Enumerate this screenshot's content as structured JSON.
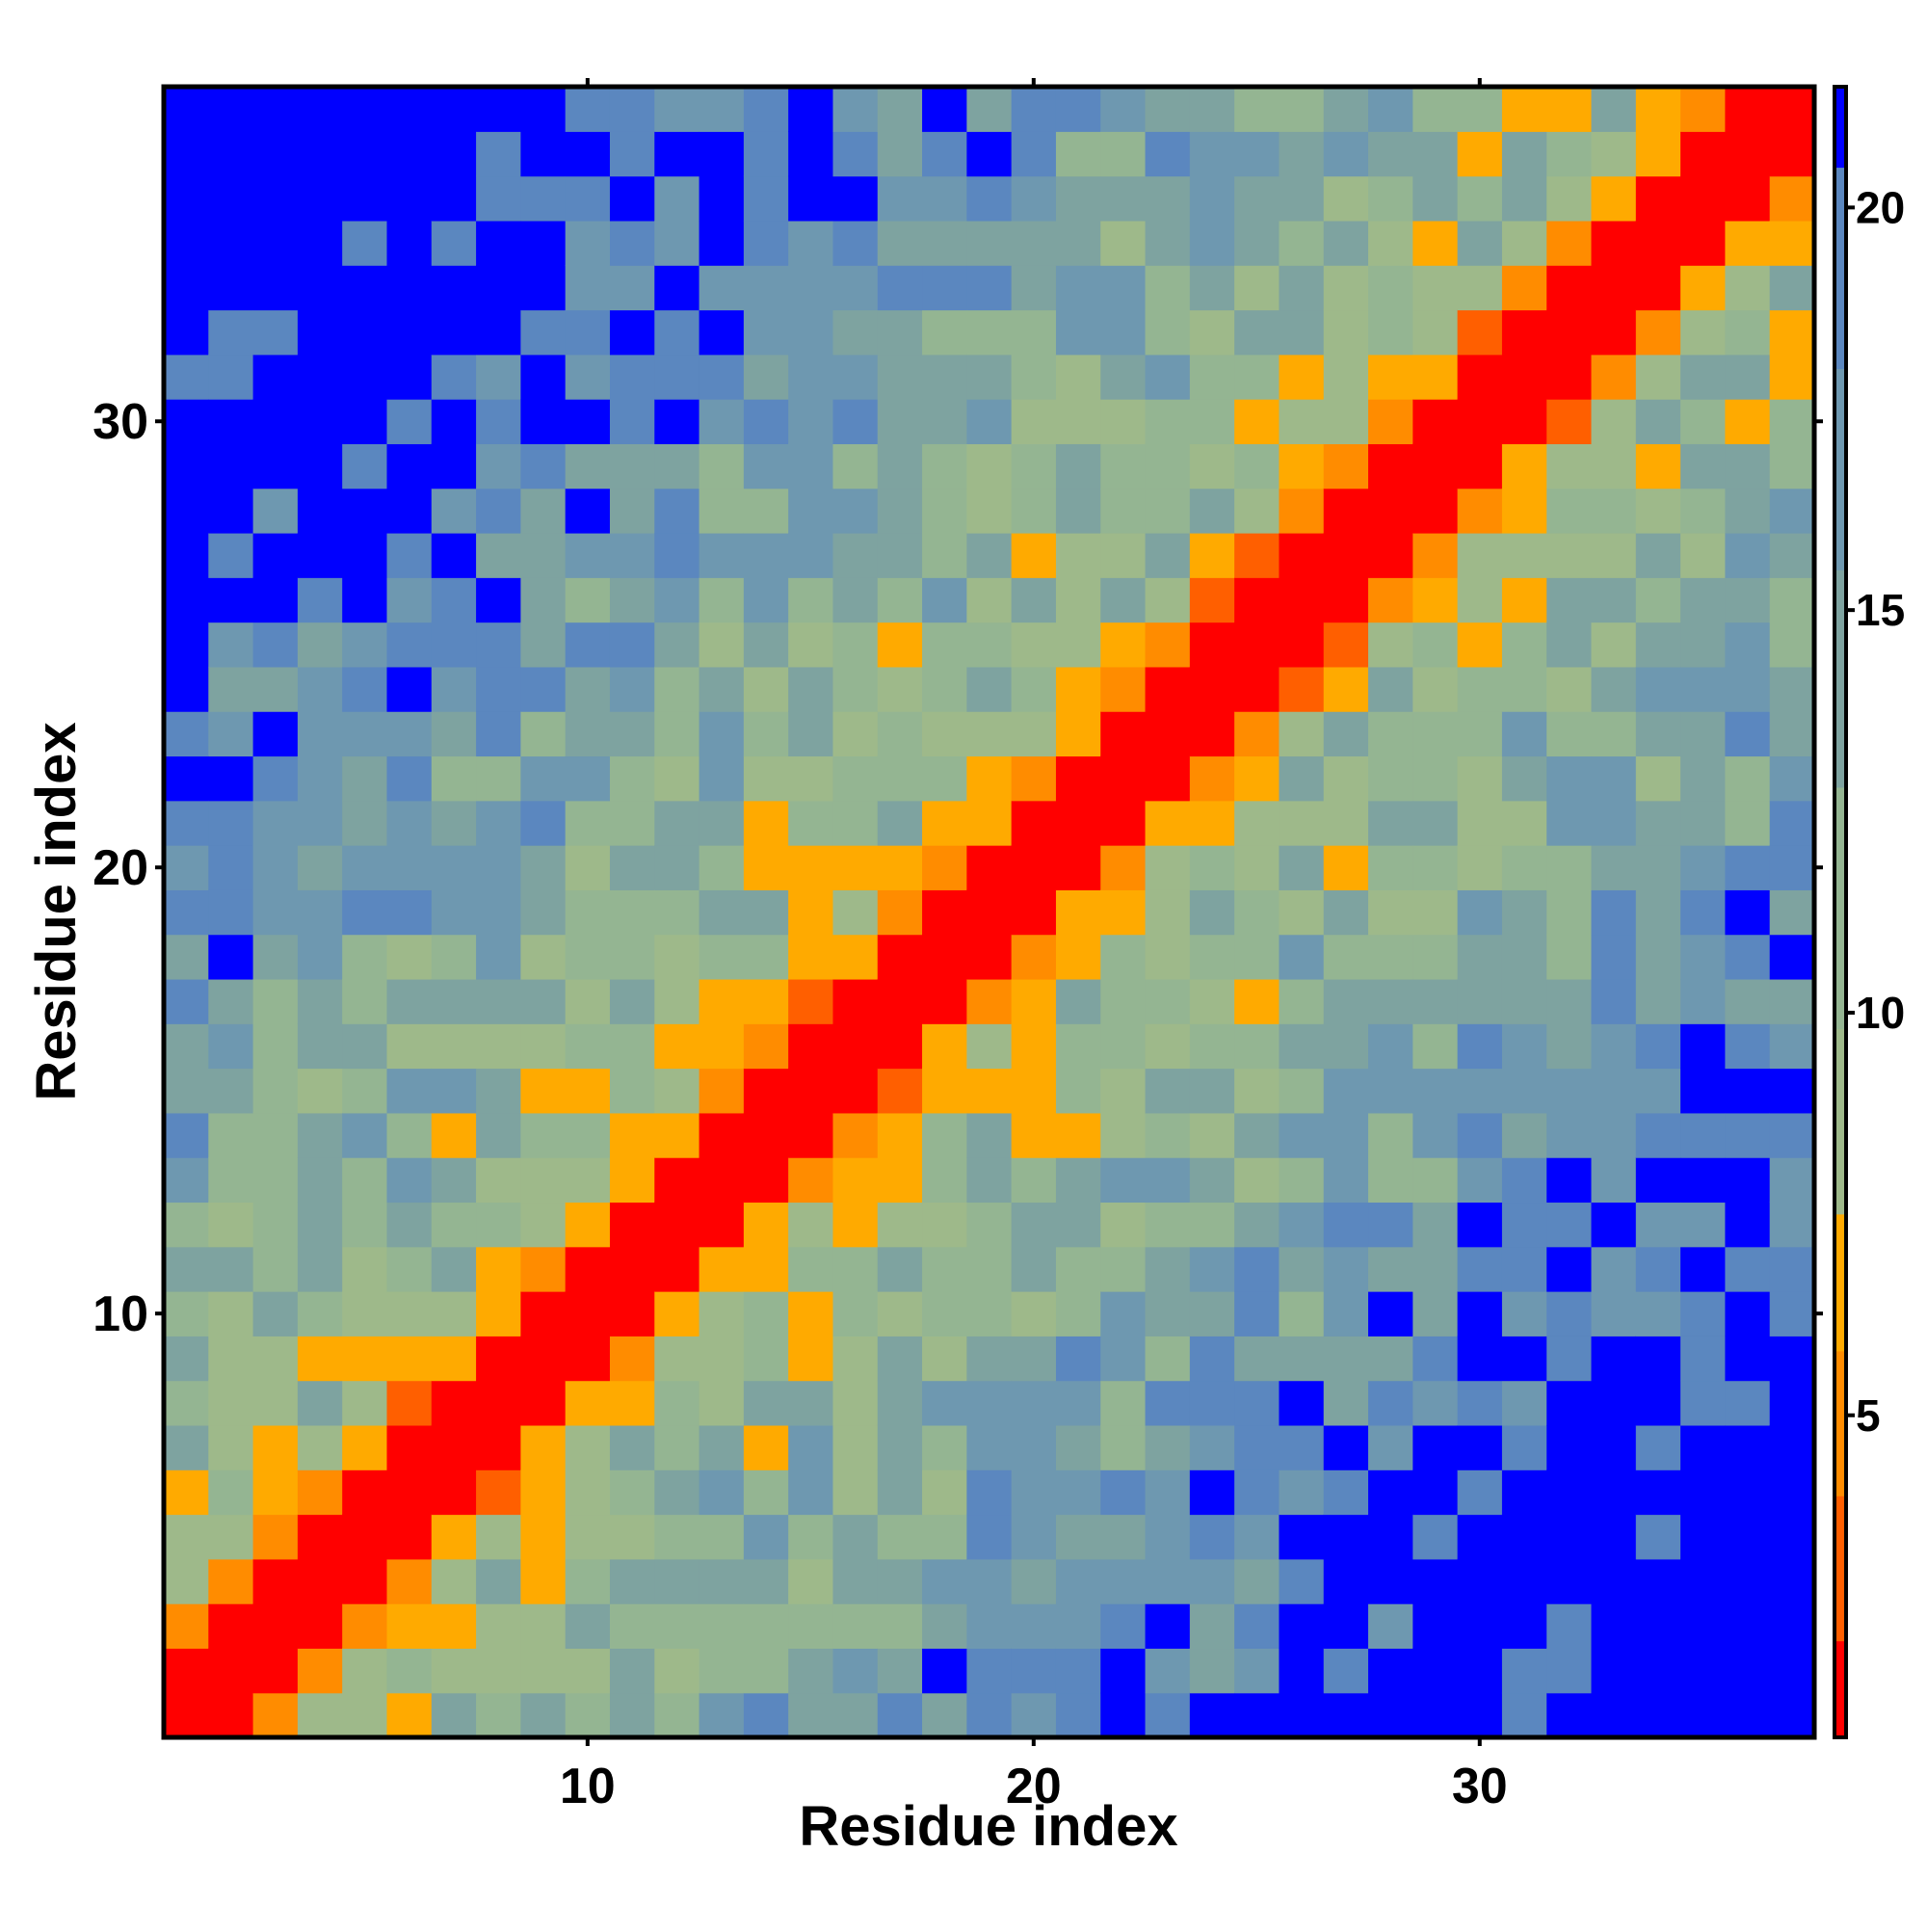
{
  "chart_data": {
    "type": "heatmap",
    "title": "",
    "xlabel": "Residue index",
    "ylabel": "Residue index",
    "n": 37,
    "xlim": [
      0.5,
      37.5
    ],
    "ylim": [
      0.5,
      37.5
    ],
    "x_ticks": [
      10,
      20,
      30
    ],
    "y_ticks": [
      10,
      20,
      30
    ],
    "colorbar": {
      "ticks": [
        5,
        10,
        15,
        20
      ],
      "range": [
        1,
        21.5
      ],
      "palette": [
        {
          "max": 2.2,
          "color": "#FF0000"
        },
        {
          "max": 4.0,
          "color": "#FF5F00"
        },
        {
          "max": 5.8,
          "color": "#FF8C00"
        },
        {
          "max": 7.5,
          "color": "#FFAA00"
        },
        {
          "max": 9.8,
          "color": "#9EB98A"
        },
        {
          "max": 12.8,
          "color": "#94B592"
        },
        {
          "max": 15.5,
          "color": "#7EA3A0"
        },
        {
          "max": 18.0,
          "color": "#6E98B0"
        },
        {
          "max": 20.5,
          "color": "#5B87BF"
        },
        {
          "max": 99,
          "color": "#0000FF"
        }
      ]
    }
  }
}
